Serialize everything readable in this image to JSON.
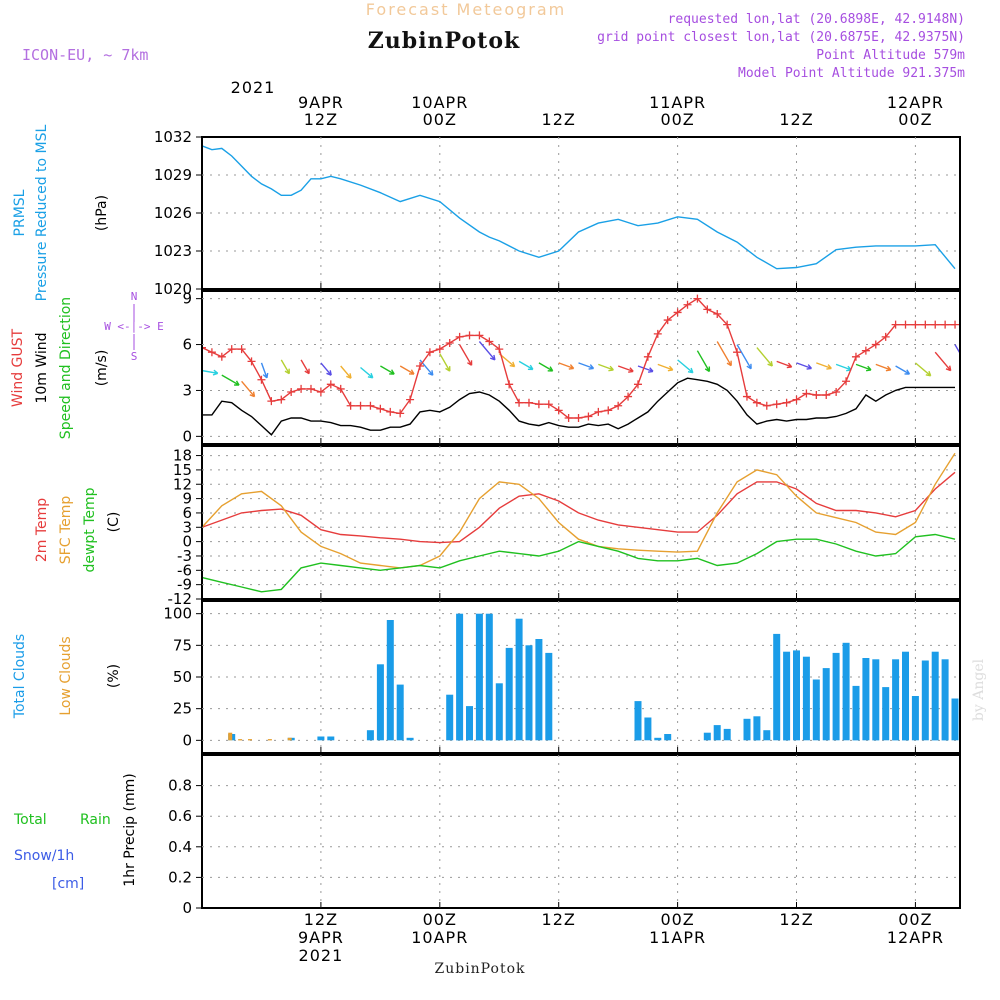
{
  "header": {
    "title": "Forecast Meteogram",
    "station": "ZubinPotok",
    "model": "ICON-EU, ~ 7km",
    "requested": "requested lon,lat (20.6898E, 42.9148N)",
    "closest": "grid point closest lon,lat (20.6875E, 42.9375N)",
    "point_altitude": "Point Altitude 579m",
    "model_altitude": "Model Point Altitude 921.375m"
  },
  "time_axis": {
    "top_year": "2021",
    "ticks": [
      {
        "h": 12,
        "top": [
          "9APR",
          "12Z"
        ],
        "bottom": [
          "12Z",
          "9APR",
          "2021"
        ]
      },
      {
        "h": 24,
        "top": [
          "10APR",
          "00Z"
        ],
        "bottom": [
          "00Z",
          "10APR"
        ]
      },
      {
        "h": 36,
        "top": [
          "12Z"
        ],
        "bottom": [
          "12Z"
        ]
      },
      {
        "h": 48,
        "top": [
          "11APR",
          "00Z"
        ],
        "bottom": [
          "00Z",
          "11APR"
        ]
      },
      {
        "h": 60,
        "top": [
          "12Z"
        ],
        "bottom": [
          "12Z"
        ]
      },
      {
        "h": 72,
        "top": [
          "12APR",
          "00Z"
        ],
        "bottom": [
          "00Z",
          "12APR"
        ]
      }
    ],
    "hours_start": 0,
    "hours_end": 76.5
  },
  "footer": {
    "station": "ZubinPotok",
    "watermark": "by Angel"
  },
  "legend": {
    "prmsl": "PRMSL",
    "prmsl_desc": "Pressure Reduced to MSL",
    "prmsl_unit": "(hPa)",
    "wind_gust": "Wind GUST",
    "wind_10m": "10m Wind",
    "wind_desc": "Speed and Direction",
    "wind_unit": "(m/s)",
    "compass_n": "N",
    "compass_s": "S",
    "compass_row": "W <-|-> E",
    "temp_2m": "2m Temp",
    "temp_sfc": "SFC Temp",
    "temp_dew": "dewpt Temp",
    "temp_unit": "(C)",
    "cloud_total": "Total Clouds",
    "cloud_low": "Low Clouds",
    "cloud_unit": "(%)",
    "precip_total": "Total",
    "precip_rain": "Rain",
    "precip_snow": "Snow/1h",
    "precip_snow_unit": "[cm]",
    "precip_unit": "1hr Precip (mm)"
  },
  "colors": {
    "pressure": "#1aa0e6",
    "gust": "#e63c3c",
    "wind10m": "#000000",
    "t2m": "#e63c3c",
    "tsfc": "#e6a030",
    "dewpt": "#20c020",
    "cloud_total": "#1a9ce8",
    "cloud_low": "#e6a030",
    "rain": "#20c020",
    "snow": "#3c5ce6",
    "legend_purple": "#a64ee0"
  },
  "chart_data": [
    {
      "type": "line",
      "title": "PRMSL Pressure Reduced to MSL",
      "ylabel": "(hPa)",
      "ylim": [
        1020,
        1032
      ],
      "yticks": [
        "1020",
        "1023",
        "1026",
        "1029",
        "1032"
      ],
      "grid": true,
      "x": [
        0,
        1,
        2,
        3,
        4,
        5,
        6,
        7,
        8,
        9,
        10,
        11,
        12,
        13,
        14,
        16,
        18,
        20,
        22,
        24,
        26,
        28,
        29,
        30,
        32,
        34,
        36,
        38,
        40,
        42,
        44,
        46,
        48,
        50,
        52,
        54,
        56,
        58,
        60,
        62,
        64,
        66,
        68,
        70,
        72,
        74,
        76
      ],
      "series": [
        {
          "name": "PRMSL",
          "values": [
            1031.3,
            1031.0,
            1031.1,
            1030.5,
            1029.7,
            1028.9,
            1028.3,
            1027.9,
            1027.4,
            1027.4,
            1027.8,
            1028.7,
            1028.7,
            1028.9,
            1028.7,
            1028.2,
            1027.6,
            1026.9,
            1027.4,
            1026.9,
            1025.6,
            1024.5,
            1024.1,
            1023.8,
            1023.0,
            1022.5,
            1023.0,
            1024.5,
            1025.2,
            1025.5,
            1025.0,
            1025.2,
            1025.7,
            1025.5,
            1024.5,
            1023.7,
            1022.5,
            1021.6,
            1021.7,
            1022.0,
            1023.1,
            1023.3,
            1023.4,
            1023.4,
            1023.4,
            1023.5,
            1021.6
          ]
        }
      ]
    },
    {
      "type": "line",
      "title": "Wind GUST / 10m Wind Speed and Direction",
      "ylabel": "(m/s)",
      "ylim": [
        -0.5,
        9.5
      ],
      "yticks": [
        "0",
        "3",
        "6",
        "9"
      ],
      "grid": true,
      "x": [
        0,
        1,
        2,
        3,
        4,
        5,
        6,
        7,
        8,
        9,
        10,
        11,
        12,
        13,
        14,
        15,
        16,
        17,
        18,
        19,
        20,
        21,
        22,
        23,
        24,
        25,
        26,
        27,
        28,
        29,
        30,
        31,
        32,
        33,
        34,
        35,
        36,
        37,
        38,
        39,
        40,
        41,
        42,
        43,
        44,
        45,
        46,
        47,
        48,
        49,
        50,
        51,
        52,
        53,
        54,
        55,
        56,
        57,
        58,
        59,
        60,
        61,
        62,
        63,
        64,
        65,
        66,
        67,
        68,
        69,
        70,
        71,
        72,
        73,
        74,
        75,
        76
      ],
      "series": [
        {
          "name": "Wind GUST",
          "values": [
            5.8,
            5.5,
            5.2,
            5.7,
            5.7,
            4.9,
            3.7,
            2.3,
            2.4,
            2.9,
            3.1,
            3.1,
            2.9,
            3.4,
            3.1,
            2.0,
            2.0,
            2.0,
            1.8,
            1.6,
            1.5,
            2.4,
            4.6,
            5.5,
            5.7,
            6.1,
            6.5,
            6.6,
            6.6,
            6.2,
            5.7,
            3.4,
            2.2,
            2.2,
            2.1,
            2.1,
            1.7,
            1.2,
            1.2,
            1.3,
            1.6,
            1.7,
            2.0,
            2.6,
            3.4,
            5.2,
            6.7,
            7.6,
            8.1,
            8.6,
            9.0,
            8.3,
            8.0,
            7.3,
            5.5,
            2.6,
            2.2,
            2.0,
            2.1,
            2.2,
            2.4,
            2.8,
            2.7,
            2.7,
            2.9,
            3.6,
            5.2,
            5.6,
            6.0,
            6.5,
            7.3,
            7.3,
            7.3,
            7.3,
            7.3,
            7.3,
            7.3
          ]
        },
        {
          "name": "10m Wind",
          "values": [
            1.4,
            1.4,
            2.3,
            2.2,
            1.7,
            1.3,
            0.7,
            0.1,
            1.0,
            1.2,
            1.2,
            1.0,
            1.0,
            0.9,
            0.7,
            0.7,
            0.6,
            0.4,
            0.4,
            0.6,
            0.6,
            0.8,
            1.6,
            1.7,
            1.6,
            1.9,
            2.4,
            2.8,
            2.9,
            2.7,
            2.3,
            1.7,
            1.0,
            0.8,
            0.7,
            0.9,
            0.7,
            0.6,
            0.6,
            0.8,
            0.7,
            0.8,
            0.5,
            0.8,
            1.2,
            1.6,
            2.3,
            2.9,
            3.5,
            3.8,
            3.7,
            3.6,
            3.4,
            3.0,
            2.3,
            1.4,
            0.8,
            1.0,
            1.1,
            1.0,
            1.1,
            1.1,
            1.2,
            1.2,
            1.3,
            1.5,
            1.8,
            2.7,
            2.3,
            2.7,
            3.0,
            3.2,
            3.2,
            3.2,
            3.2,
            3.2,
            3.2
          ]
        }
      ],
      "wind_barbs": {
        "x": [
          0,
          2,
          4,
          6,
          8,
          10,
          12,
          14,
          16,
          18,
          20,
          22,
          24,
          26,
          28,
          30,
          32,
          34,
          36,
          38,
          40,
          42,
          44,
          46,
          48,
          50,
          52,
          54,
          56,
          58,
          60,
          62,
          64,
          66,
          68,
          70,
          72,
          74,
          76
        ],
        "y": [
          4.3,
          4.0,
          3.6,
          4.8,
          5.0,
          5.0,
          4.8,
          4.6,
          4.5,
          4.6,
          4.6,
          5.0,
          5.4,
          6.0,
          6.2,
          5.4,
          4.9,
          4.8,
          4.8,
          4.8,
          4.7,
          4.6,
          4.6,
          4.7,
          5.0,
          5.6,
          6.2,
          6.0,
          5.8,
          4.9,
          4.8,
          4.8,
          4.7,
          4.7,
          4.7,
          4.6,
          4.8,
          5.5,
          6.0
        ],
        "dir": [
          280,
          300,
          320,
          340,
          330,
          330,
          320,
          320,
          310,
          300,
          300,
          320,
          330,
          330,
          320,
          310,
          300,
          300,
          290,
          290,
          290,
          290,
          290,
          290,
          310,
          330,
          330,
          330,
          320,
          290,
          290,
          290,
          290,
          290,
          290,
          300,
          310,
          320,
          330
        ],
        "speed": [
          2,
          3,
          3,
          2,
          2,
          2,
          2,
          2,
          2,
          2,
          2,
          3,
          3,
          4,
          4,
          3,
          2,
          2,
          2,
          2,
          2,
          2,
          2,
          2,
          3,
          4,
          5,
          5,
          4,
          2,
          2,
          2,
          2,
          2,
          2,
          2,
          3,
          4,
          5
        ]
      }
    },
    {
      "type": "line",
      "title": "2m Temp / SFC Temp / dewpt Temp",
      "ylabel": "(C)",
      "ylim": [
        -12,
        20
      ],
      "yticks": [
        "-12",
        "-9",
        "-6",
        "-3",
        "0",
        "3",
        "6",
        "9",
        "12",
        "15",
        "18"
      ],
      "grid": true,
      "x": [
        0,
        2,
        4,
        6,
        8,
        10,
        12,
        14,
        16,
        18,
        20,
        22,
        24,
        26,
        28,
        30,
        32,
        34,
        36,
        38,
        40,
        42,
        44,
        46,
        48,
        50,
        52,
        54,
        56,
        58,
        60,
        62,
        64,
        66,
        68,
        70,
        72,
        74,
        76
      ],
      "series": [
        {
          "name": "2m Temp",
          "values": [
            3.0,
            4.5,
            6.0,
            6.5,
            6.8,
            5.5,
            2.5,
            1.5,
            1.2,
            0.8,
            0.5,
            0.0,
            -0.2,
            0.0,
            3.0,
            7.0,
            9.5,
            10.0,
            8.5,
            6.0,
            4.5,
            3.5,
            3.0,
            2.5,
            2.0,
            2.0,
            5.5,
            10.0,
            12.5,
            12.5,
            11.0,
            8.0,
            6.5,
            6.5,
            6.0,
            5.2,
            6.5,
            11.0,
            14.5
          ]
        },
        {
          "name": "SFC Temp",
          "values": [
            3.0,
            7.5,
            10.0,
            10.5,
            7.5,
            2.0,
            -1.0,
            -2.5,
            -4.5,
            -5.0,
            -5.5,
            -5.0,
            -3.0,
            2.0,
            9.0,
            12.5,
            12.0,
            9.0,
            4.0,
            0.5,
            -1.0,
            -1.5,
            -1.8,
            -2.0,
            -2.2,
            -2.0,
            6.0,
            12.5,
            15.0,
            14.0,
            9.5,
            6.0,
            5.0,
            4.0,
            2.0,
            1.5,
            4.0,
            12.0,
            18.5
          ]
        },
        {
          "name": "dewpt Temp",
          "values": [
            -7.5,
            -8.5,
            -9.5,
            -10.5,
            -10.0,
            -5.5,
            -4.5,
            -5.0,
            -5.5,
            -6.0,
            -5.5,
            -5.0,
            -5.5,
            -4.0,
            -3.0,
            -2.0,
            -2.5,
            -3.0,
            -2.0,
            0.0,
            -1.0,
            -2.0,
            -3.5,
            -4.0,
            -4.0,
            -3.5,
            -5.0,
            -4.5,
            -2.5,
            0.0,
            0.5,
            0.5,
            -0.5,
            -2.0,
            -3.0,
            -2.5,
            1.0,
            1.5,
            0.5
          ]
        }
      ]
    },
    {
      "type": "bar",
      "title": "Total Clouds / Low Clouds",
      "ylabel": "(%)",
      "ylim": [
        -10,
        110
      ],
      "yticks": [
        "0",
        "25",
        "50",
        "75",
        "100"
      ],
      "grid": true,
      "x": [
        0,
        1,
        2,
        3,
        4,
        5,
        6,
        7,
        8,
        9,
        10,
        11,
        12,
        13,
        14,
        15,
        16,
        17,
        18,
        19,
        20,
        21,
        22,
        23,
        24,
        25,
        26,
        27,
        28,
        29,
        30,
        31,
        32,
        33,
        34,
        35,
        36,
        37,
        38,
        39,
        40,
        41,
        42,
        43,
        44,
        45,
        46,
        47,
        48,
        49,
        50,
        51,
        52,
        53,
        54,
        55,
        56,
        57,
        58,
        59,
        60,
        61,
        62,
        63,
        64,
        65,
        66,
        67,
        68,
        69,
        70,
        71,
        72,
        73,
        74,
        75,
        76
      ],
      "series": [
        {
          "name": "Total Clouds",
          "values": [
            0,
            0,
            0,
            5,
            0,
            0,
            0,
            0,
            0,
            2,
            0,
            0,
            3,
            3,
            0,
            0,
            0,
            8,
            60,
            95,
            44,
            2,
            0,
            0,
            0,
            36,
            100,
            27,
            100,
            100,
            45,
            73,
            96,
            75,
            80,
            69,
            0,
            0,
            0,
            0,
            0,
            0,
            0,
            0,
            31,
            18,
            2,
            5,
            0,
            0,
            0,
            6,
            12,
            9,
            0,
            17,
            19,
            8,
            84,
            70,
            71,
            66,
            48,
            57,
            69,
            77,
            43,
            65,
            64,
            42,
            64,
            70,
            35,
            63,
            70,
            64,
            33
          ]
        },
        {
          "name": "Low Clouds",
          "values": [
            0,
            0,
            0,
            6,
            1,
            1,
            0,
            1,
            0,
            2,
            0,
            0,
            0,
            0,
            0,
            0,
            0,
            0,
            0,
            0,
            0,
            0,
            0,
            0,
            0,
            0,
            0,
            0,
            0,
            0,
            0,
            0,
            0,
            0,
            0,
            0,
            0,
            0,
            0,
            0,
            0,
            0,
            0,
            0,
            0,
            0,
            0,
            0,
            0,
            0,
            0,
            0,
            0,
            0,
            0,
            0,
            0,
            0,
            0,
            0,
            0,
            0,
            0,
            0,
            0,
            0,
            0,
            0,
            0,
            0,
            0,
            0,
            0,
            0,
            0,
            0,
            0
          ]
        }
      ]
    },
    {
      "type": "bar",
      "title": "Total Rain Snow/1h",
      "ylabel": "1hr Precip (mm)",
      "ylim": [
        0,
        1
      ],
      "yticks": [
        "0",
        "0.2",
        "0.4",
        "0.6",
        "0.8"
      ],
      "grid": true,
      "x": [
        0,
        76
      ],
      "series": [
        {
          "name": "Total Rain",
          "values": [
            0,
            0
          ]
        },
        {
          "name": "Snow/1h",
          "values": [
            0,
            0
          ]
        }
      ]
    }
  ]
}
